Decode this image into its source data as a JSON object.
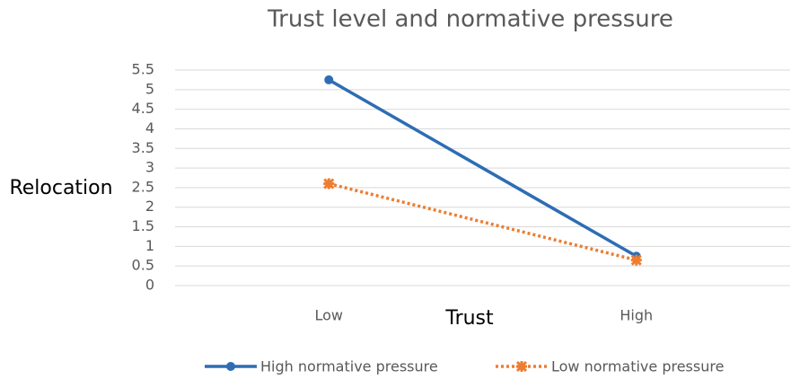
{
  "chart_data": {
    "type": "line",
    "title": "Trust level and normative pressure",
    "x_label": "Trust",
    "y_label": "Relocation",
    "categories": [
      "Low",
      "High"
    ],
    "series": [
      {
        "name": "High normative pressure",
        "color": "#2e6db4",
        "marker": "circle",
        "dash": "solid",
        "values": [
          5.25,
          0.75
        ]
      },
      {
        "name": "Low normative pressure",
        "color": "#ed7d31",
        "marker": "star",
        "dash": "dotted",
        "values": [
          2.6,
          0.65
        ]
      }
    ],
    "ylim": [
      0,
      5.5
    ],
    "yticks": [
      0,
      0.5,
      1,
      1.5,
      2,
      2.5,
      3,
      3.5,
      4,
      4.5,
      5,
      5.5
    ],
    "grid": true,
    "legend": "bottom"
  }
}
